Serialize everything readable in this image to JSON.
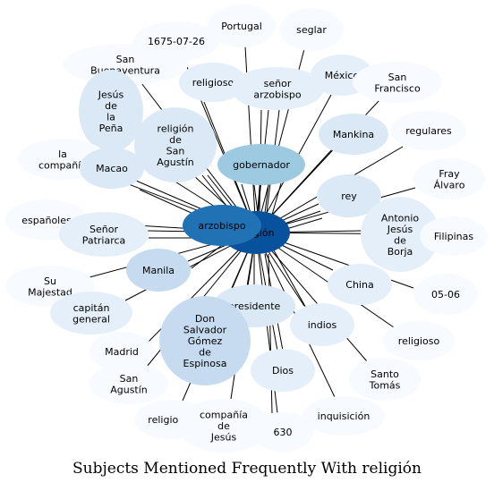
{
  "title": "Subjects Mentioned Frequently With religión",
  "hub": {
    "label": "religión",
    "color": "#08519c"
  },
  "edge_color": "#000000",
  "nodes": [
    {
      "id": "seglar",
      "label": "seglar",
      "color": "#f7fbff"
    },
    {
      "id": "portugal",
      "label": "Portugal",
      "color": "#f7fbff"
    },
    {
      "id": "fecha-1675",
      "label": "1675-07-26",
      "color": "#f7fbff"
    },
    {
      "id": "san-buenaventura",
      "label": "San\nBuenaventura",
      "color": "#f7fbff"
    },
    {
      "id": "religioso-top",
      "label": "religioso",
      "color": "#e5eff9"
    },
    {
      "id": "senor-arzobispo",
      "label": "señor\narzobispo",
      "color": "#e5eff9"
    },
    {
      "id": "mexico",
      "label": "México",
      "color": "#e5eff9"
    },
    {
      "id": "san-francisco",
      "label": "San\nFrancisco",
      "color": "#f7fbff"
    },
    {
      "id": "jesus-pena",
      "label": "Jesús\nde\nla\nPeña",
      "color": "#dbe9f6"
    },
    {
      "id": "la-compania",
      "label": "la\ncompañía",
      "color": "#f7fbff"
    },
    {
      "id": "religion-san-agustin",
      "label": "religión\nde\nSan\nAgustín",
      "color": "#dbe9f6"
    },
    {
      "id": "macao",
      "label": "Macao",
      "color": "#dbe9f6"
    },
    {
      "id": "gobernador",
      "label": "gobernador",
      "color": "#9ecae1"
    },
    {
      "id": "mankina",
      "label": "Mankina",
      "color": "#dbe9f6"
    },
    {
      "id": "regulares",
      "label": "regulares",
      "color": "#f7fbff"
    },
    {
      "id": "fray-alvaro",
      "label": "Fray\nÁlvaro",
      "color": "#f7fbff"
    },
    {
      "id": "espanoles",
      "label": "españoles",
      "color": "#f7fbff"
    },
    {
      "id": "senor-patriarca",
      "label": "Señor\nPatriarca",
      "color": "#e5eff9"
    },
    {
      "id": "arzobispo",
      "label": "arzobispo",
      "color": "#2171b5"
    },
    {
      "id": "rey",
      "label": "rey",
      "color": "#dbe9f6"
    },
    {
      "id": "antonio-jesus-borja",
      "label": "Antonio\nJesús\nde\nBorja",
      "color": "#e5eff9"
    },
    {
      "id": "filipinas",
      "label": "Filipinas",
      "color": "#f7fbff"
    },
    {
      "id": "manila",
      "label": "Manila",
      "color": "#c6dbef"
    },
    {
      "id": "su-majestad",
      "label": "Su\nMajestad",
      "color": "#f7fbff"
    },
    {
      "id": "china",
      "label": "China",
      "color": "#e5eff9"
    },
    {
      "id": "fecha-05-06",
      "label": "05-06",
      "color": "#f7fbff"
    },
    {
      "id": "capitan-general",
      "label": "capitán\ngeneral",
      "color": "#e5eff9"
    },
    {
      "id": "presidente",
      "label": "presidente",
      "color": "#dbe9f6"
    },
    {
      "id": "don-salvador",
      "label": "Don\nSalvador\nGómez\nde\nEspinosa",
      "color": "#c6dbef"
    },
    {
      "id": "indios",
      "label": "indios",
      "color": "#e5eff9"
    },
    {
      "id": "religioso-right",
      "label": "religioso",
      "color": "#f7fbff"
    },
    {
      "id": "madrid",
      "label": "Madrid",
      "color": "#f7fbff"
    },
    {
      "id": "dios",
      "label": "Dios",
      "color": "#e5eff9"
    },
    {
      "id": "santo-tomas",
      "label": "Santo\nTomás",
      "color": "#f7fbff"
    },
    {
      "id": "san-agustin",
      "label": "San\nAgustín",
      "color": "#f7fbff"
    },
    {
      "id": "inquisicion",
      "label": "inquisición",
      "color": "#f7fbff"
    },
    {
      "id": "religiones",
      "label": "religiones",
      "color": "#f7fbff"
    },
    {
      "id": "compania-jesus",
      "label": "compañía\nde\nJesús",
      "color": "#f7fbff"
    },
    {
      "id": "n630",
      "label": "630",
      "color": "#f7fbff"
    }
  ]
}
